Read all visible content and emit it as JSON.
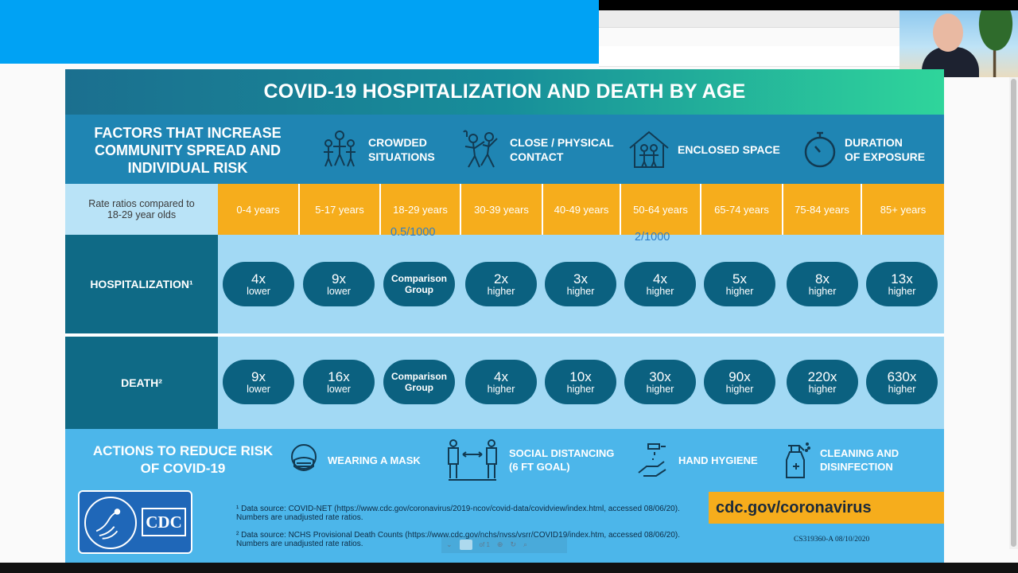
{
  "poster": {
    "title": "COVID-19 HOSPITALIZATION AND DEATH BY AGE",
    "factors_title": "FACTORS THAT INCREASE COMMUNITY SPREAD AND INDIVIDUAL RISK",
    "factors": [
      {
        "label": "CROWDED\nSITUATIONS",
        "icon": "crowd-icon"
      },
      {
        "label": "CLOSE / PHYSICAL\nCONTACT",
        "icon": "dancing-icon"
      },
      {
        "label": "ENCLOSED SPACE",
        "icon": "house-icon"
      },
      {
        "label": "DURATION\nOF EXPOSURE",
        "icon": "stopwatch-icon"
      }
    ],
    "rate_label": "Rate ratios compared to 18-29 year olds",
    "age_groups": [
      "0-4 years",
      "5-17 years",
      "18-29 years",
      "30-39 years",
      "40-49 years",
      "50-64 years",
      "65-74 years",
      "75-84 years",
      "85+ years"
    ],
    "annotations": {
      "a1": "0.5/1000",
      "a2": "2/1000"
    },
    "hospitalization": {
      "label": "HOSPITALIZATION¹",
      "values": [
        {
          "value": "4x",
          "dir": "lower"
        },
        {
          "value": "9x",
          "dir": "lower"
        },
        {
          "value": "Comparison",
          "dir": "Group"
        },
        {
          "value": "2x",
          "dir": "higher"
        },
        {
          "value": "3x",
          "dir": "higher"
        },
        {
          "value": "4x",
          "dir": "higher"
        },
        {
          "value": "5x",
          "dir": "higher"
        },
        {
          "value": "8x",
          "dir": "higher"
        },
        {
          "value": "13x",
          "dir": "higher"
        }
      ]
    },
    "death": {
      "label": "DEATH²",
      "values": [
        {
          "value": "9x",
          "dir": "lower"
        },
        {
          "value": "16x",
          "dir": "lower"
        },
        {
          "value": "Comparison",
          "dir": "Group"
        },
        {
          "value": "4x",
          "dir": "higher"
        },
        {
          "value": "10x",
          "dir": "higher"
        },
        {
          "value": "30x",
          "dir": "higher"
        },
        {
          "value": "90x",
          "dir": "higher"
        },
        {
          "value": "220x",
          "dir": "higher"
        },
        {
          "value": "630x",
          "dir": "higher"
        }
      ]
    },
    "actions_title": "ACTIONS TO REDUCE RISK OF COVID-19",
    "actions": [
      {
        "label": "WEARING A MASK",
        "icon": "mask-icon"
      },
      {
        "label": "SOCIAL DISTANCING\n(6 FT GOAL)",
        "icon": "distancing-icon"
      },
      {
        "label": "HAND HYGIENE",
        "icon": "hand-wash-icon"
      },
      {
        "label": "CLEANING AND\nDISINFECTION",
        "icon": "spray-bottle-icon"
      }
    ],
    "logo_text": "CDC",
    "footnote1": "¹ Data source: COVID-NET (https://www.cdc.gov/coronavirus/2019-ncov/covid-data/covidview/index.html, accessed 08/06/20). Numbers are unadjusted rate ratios.",
    "footnote2": "² Data source: NCHS Provisional Death Counts (https://www.cdc.gov/nchs/nvss/vsrr/COVID19/index.htm, accessed 08/06/20). Numbers are unadjusted rate ratios.",
    "url": "cdc.gov/coronavirus",
    "doc_code": "CS319360-A 08/10/2020"
  },
  "pdf_toolbar": {
    "page": "1",
    "of": "of 1"
  }
}
